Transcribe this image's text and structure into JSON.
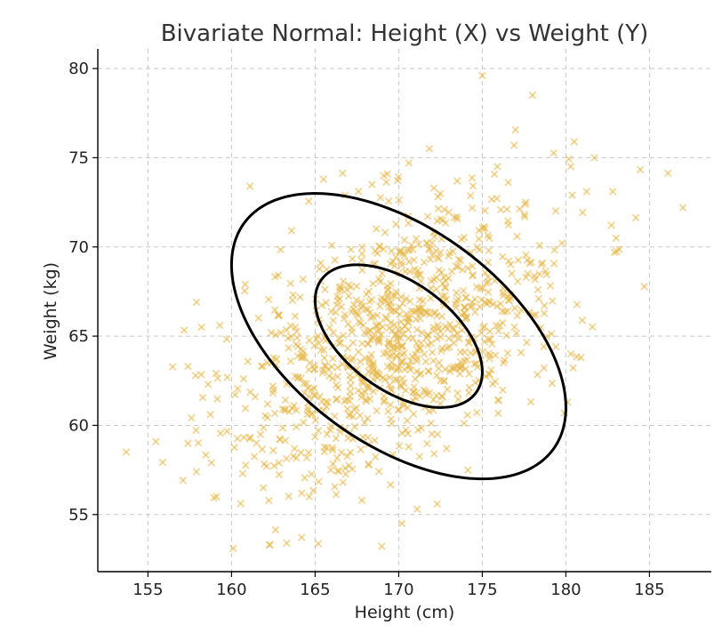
{
  "chart_data": {
    "type": "scatter",
    "title": "Bivariate Normal: Height (X) vs Weight (Y)",
    "xlabel": "Height (cm)",
    "ylabel": "Weight (kg)",
    "xlim": [
      152,
      188.7
    ],
    "ylim": [
      51.8,
      81.1
    ],
    "xticks": [
      155,
      160,
      165,
      170,
      175,
      180,
      185
    ],
    "yticks": [
      55,
      60,
      65,
      70,
      75,
      80
    ],
    "grid": true,
    "marker": "x",
    "point_color": "#E6B84A",
    "contour_color": "#000000",
    "distribution": {
      "mean": [
        170,
        65
      ],
      "std": [
        5,
        4
      ],
      "correlation": 0.5,
      "n_points": 1000
    },
    "contours": [
      {
        "name": "inner",
        "x_range": [
          165,
          175
        ],
        "y_range": [
          61,
          69
        ]
      },
      {
        "name": "outer",
        "x_range": [
          160,
          180
        ],
        "y_range": [
          57,
          73
        ]
      }
    ],
    "points": [
      [
        153.7,
        58.5
      ],
      [
        157.4,
        63.3
      ],
      [
        158.2,
        65.5
      ],
      [
        158.8,
        57.9
      ],
      [
        159.1,
        56.0
      ],
      [
        160.1,
        53.1
      ],
      [
        161.1,
        73.4
      ],
      [
        162.3,
        53.3
      ],
      [
        163.3,
        53.4
      ],
      [
        159.3,
        65.6
      ],
      [
        157.9,
        57.4
      ],
      [
        158.6,
        62.3
      ],
      [
        165.5,
        73.8
      ],
      [
        176.9,
        75.7
      ],
      [
        178.0,
        78.5
      ],
      [
        175.0,
        79.6
      ],
      [
        180.5,
        75.9
      ],
      [
        181.7,
        75.0
      ],
      [
        182.8,
        73.1
      ],
      [
        187.0,
        72.2
      ],
      [
        183.0,
        70.5
      ],
      [
        182.9,
        69.7
      ],
      [
        179.4,
        64.4
      ],
      [
        180.3,
        64.0
      ],
      [
        180.9,
        63.8
      ],
      [
        179.9,
        60.7
      ],
      [
        180.1,
        61.3
      ],
      [
        171.1,
        55.3
      ],
      [
        170.2,
        54.5
      ],
      [
        172.3,
        55.6
      ],
      [
        167.8,
        55.8
      ],
      [
        164.2,
        56.2
      ],
      [
        161.9,
        56.5
      ],
      [
        166.8,
        57.6
      ],
      [
        178.2,
        66.2
      ],
      [
        177.6,
        72.5
      ],
      [
        175.9,
        74.5
      ],
      [
        173.5,
        73.7
      ],
      [
        172.1,
        73.3
      ],
      [
        169.1,
        74.0
      ],
      [
        170.6,
        74.7
      ],
      [
        166.8,
        72.9
      ],
      [
        168.4,
        73.5
      ]
    ]
  }
}
